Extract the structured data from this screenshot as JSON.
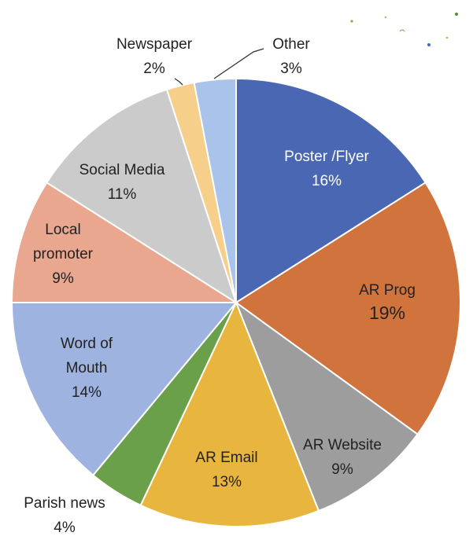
{
  "chart_data": {
    "type": "pie",
    "slices": [
      {
        "label": "Poster    /Flyer",
        "value": 16,
        "value_label": "16%",
        "color": "#4a67b3",
        "text_color": "#ffffff"
      },
      {
        "label": "AR Prog",
        "value": 19,
        "value_label": "19%",
        "color": "#d0733d",
        "text_color": "#222222"
      },
      {
        "label": "AR Website",
        "value": 9,
        "value_label": "9%",
        "color": "#9d9d9d",
        "text_color": "#222222"
      },
      {
        "label": "AR Email",
        "value": 13,
        "value_label": "13%",
        "color": "#e8b63f",
        "text_color": "#222222"
      },
      {
        "label": "Parish news",
        "value": 4,
        "value_label": "4%",
        "color": "#6aa04a",
        "text_color": "#222222"
      },
      {
        "label": "Word of Mouth",
        "value": 14,
        "value_label": "14%",
        "color": "#9fb3e0",
        "text_color": "#222222"
      },
      {
        "label": "Local promoter",
        "value": 9,
        "value_label": "9%",
        "color": "#e9a78f",
        "text_color": "#222222"
      },
      {
        "label": "Social Media",
        "value": 11,
        "value_label": "11%",
        "color": "#cbcbcb",
        "text_color": "#222222"
      },
      {
        "label": "Newspaper",
        "value": 2,
        "value_label": "2%",
        "color": "#f6d08a",
        "text_color": "#222222"
      },
      {
        "label": "Other",
        "value": 3,
        "value_label": "3%",
        "color": "#a9c3ea",
        "text_color": "#222222"
      }
    ],
    "start": "12 o'clock",
    "direction": "clockwise"
  }
}
